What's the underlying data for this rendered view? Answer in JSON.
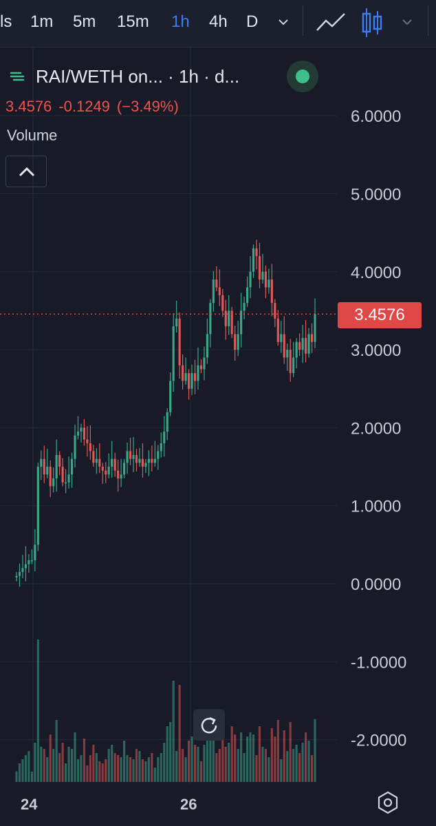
{
  "toolbar": {
    "timeframes": [
      {
        "label": "ls",
        "active": false
      },
      {
        "label": "1m",
        "active": false
      },
      {
        "label": "5m",
        "active": false
      },
      {
        "label": "15m",
        "active": false
      },
      {
        "label": "1h",
        "active": true
      },
      {
        "label": "4h",
        "active": false
      },
      {
        "label": "D",
        "active": false
      }
    ],
    "icons": [
      "chevron-down-icon",
      "line-chart-icon",
      "candlestick-icon",
      "chevron-down-icon"
    ],
    "accent_color": "#3f7cf1"
  },
  "header": {
    "symbol_title": "RAI/WETH on... · 1h · d...",
    "open": "3.4576",
    "change": "-0.1249",
    "change_pct": "(−3.49%)",
    "volume_label": "Volume",
    "status_color": "#3ec08e"
  },
  "price_tag": {
    "value": "3.4576",
    "color": "#e04848"
  },
  "axis": {
    "y_labels": [
      "6.0000",
      "5.0000",
      "4.0000",
      "3.0000",
      "2.0000",
      "1.0000",
      "0.0000",
      "-1.0000",
      "-2.0000"
    ],
    "x_labels": [
      "24",
      "26"
    ]
  },
  "chart_data": {
    "type": "candlestick",
    "ylim": [
      -2.5,
      6.5
    ],
    "up_color": "#3aa889",
    "down_color": "#e05a5a",
    "last_price": 3.4576,
    "closes": [
      0.1,
      0.15,
      0.2,
      0.25,
      0.3,
      0.3,
      0.5,
      1.5,
      1.6,
      1.4,
      1.5,
      1.25,
      1.35,
      1.65,
      1.5,
      1.3,
      1.3,
      1.4,
      1.6,
      1.9,
      1.95,
      2.0,
      1.85,
      1.8,
      1.7,
      1.55,
      1.6,
      1.5,
      1.45,
      1.4,
      1.5,
      1.6,
      1.45,
      1.35,
      1.4,
      1.55,
      1.7,
      1.6,
      1.65,
      1.55,
      1.6,
      1.5,
      1.55,
      1.6,
      1.55,
      1.6,
      1.7,
      1.8,
      1.95,
      2.2,
      2.6,
      3.3,
      3.4,
      2.8,
      2.6,
      2.7,
      2.5,
      2.7,
      2.6,
      2.8,
      2.75,
      2.9,
      3.2,
      3.6,
      3.9,
      3.8,
      3.7,
      3.5,
      3.3,
      3.5,
      3.2,
      3.0,
      3.2,
      3.5,
      3.6,
      3.8,
      4.0,
      4.3,
      4.2,
      3.9,
      4.0,
      3.8,
      3.9,
      3.6,
      3.4,
      3.1,
      3.2,
      2.9,
      3.0,
      2.7,
      2.9,
      3.1,
      3.0,
      3.15,
      2.95,
      3.2,
      3.1,
      3.4576
    ]
  }
}
